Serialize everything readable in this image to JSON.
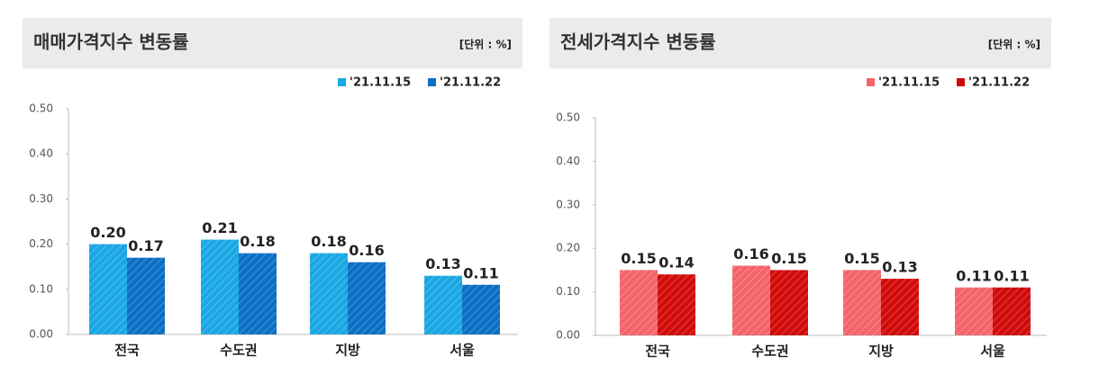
{
  "chart_data": [
    {
      "type": "bar",
      "title": "매매가격지수 변동률",
      "unit": "[단위 : %]",
      "categories": [
        "전국",
        "수도권",
        "지방",
        "서울"
      ],
      "series": [
        {
          "name": "'21.11.15",
          "color": "#1aa7e4",
          "values": [
            0.2,
            0.21,
            0.18,
            0.13
          ],
          "value_labels": [
            "0.20",
            "0.21",
            "0.18",
            "0.13"
          ]
        },
        {
          "name": "'21.11.22",
          "color": "#0b6fc4",
          "values": [
            0.17,
            0.18,
            0.16,
            0.11
          ],
          "value_labels": [
            "0.17",
            "0.18",
            "0.16",
            "0.11"
          ]
        }
      ],
      "ylim": [
        0,
        0.5
      ],
      "yticks": [
        {
          "value": 0,
          "label": "0.00"
        },
        {
          "value": 0.1,
          "label": "0.10"
        },
        {
          "value": 0.2,
          "label": "0.20"
        },
        {
          "value": 0.3,
          "label": "0.30"
        },
        {
          "value": 0.4,
          "label": "0.40"
        },
        {
          "value": 0.5,
          "label": "0.50"
        }
      ],
      "legend": "top-right",
      "grid": false
    },
    {
      "type": "bar",
      "title": "전세가격지수 변동률",
      "unit": "[단위 : %]",
      "categories": [
        "전국",
        "수도권",
        "지방",
        "서울"
      ],
      "series": [
        {
          "name": "'21.11.15",
          "color": "#f5646a",
          "values": [
            0.15,
            0.16,
            0.15,
            0.11
          ],
          "value_labels": [
            "0.15",
            "0.16",
            "0.15",
            "0.11"
          ]
        },
        {
          "name": "'21.11.22",
          "color": "#d10a0a",
          "values": [
            0.14,
            0.15,
            0.13,
            0.11
          ],
          "value_labels": [
            "0.14",
            "0.15",
            "0.13",
            "0.11"
          ]
        }
      ],
      "ylim": [
        0,
        0.5
      ],
      "yticks": [
        {
          "value": 0,
          "label": "0.00"
        },
        {
          "value": 0.1,
          "label": "0.10"
        },
        {
          "value": 0.2,
          "label": "0.20"
        },
        {
          "value": 0.3,
          "label": "0.30"
        },
        {
          "value": 0.4,
          "label": "0.40"
        },
        {
          "value": 0.5,
          "label": "0.50"
        }
      ],
      "legend": "top-right",
      "grid": false
    }
  ]
}
